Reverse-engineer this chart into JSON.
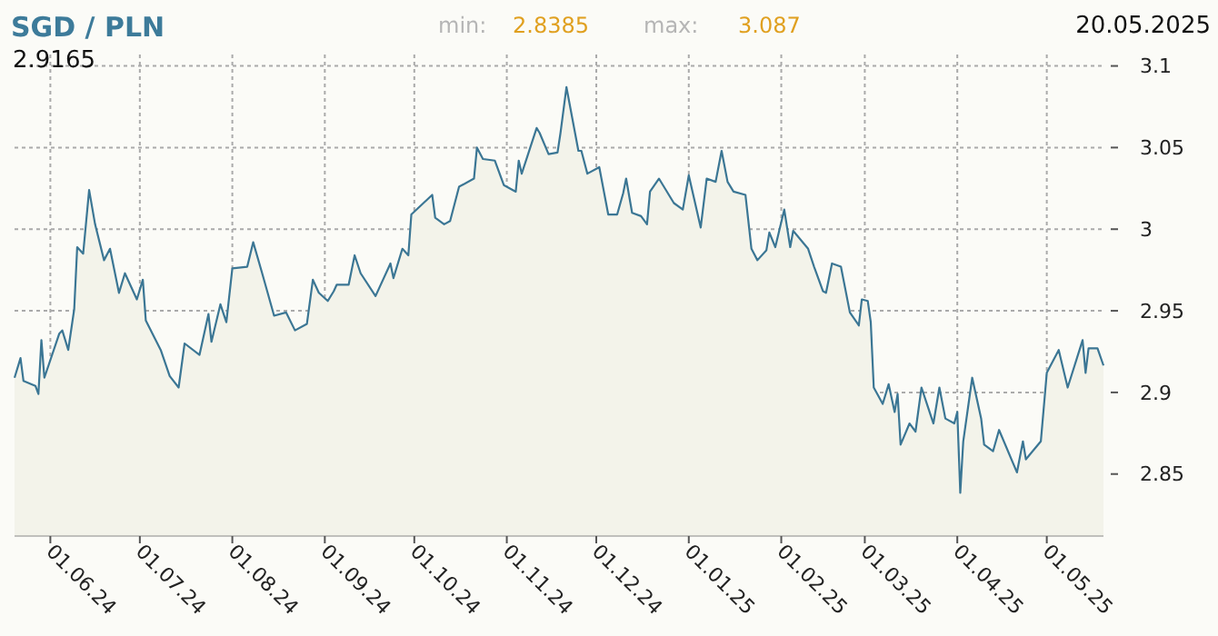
{
  "chart_data": {
    "type": "area",
    "title": "SGD / PLN",
    "annotations": [
      "min:",
      "2.8385",
      "max:",
      "3.087",
      "20.05.2025",
      "2.9165"
    ],
    "x": [
      "2024-05-20",
      "2024-05-22",
      "2024-05-23",
      "2024-05-27",
      "2024-05-28",
      "2024-05-29",
      "2024-05-30",
      "2024-06-04",
      "2024-06-05",
      "2024-06-07",
      "2024-06-09",
      "2024-06-10",
      "2024-06-12",
      "2024-06-14",
      "2024-06-16",
      "2024-06-19",
      "2024-06-21",
      "2024-06-24",
      "2024-06-26",
      "2024-06-30",
      "2024-07-02",
      "2024-07-03",
      "2024-07-08",
      "2024-07-11",
      "2024-07-14",
      "2024-07-16",
      "2024-07-21",
      "2024-07-24",
      "2024-07-25",
      "2024-07-28",
      "2024-07-30",
      "2024-08-01",
      "2024-08-06",
      "2024-08-08",
      "2024-08-11",
      "2024-08-15",
      "2024-08-19",
      "2024-08-22",
      "2024-08-26",
      "2024-08-28",
      "2024-08-30",
      "2024-09-02",
      "2024-09-04",
      "2024-09-05",
      "2024-09-09",
      "2024-09-11",
      "2024-09-13",
      "2024-09-18",
      "2024-09-23",
      "2024-09-24",
      "2024-09-27",
      "2024-09-29",
      "2024-09-30",
      "2024-10-07",
      "2024-10-08",
      "2024-10-11",
      "2024-10-13",
      "2024-10-16",
      "2024-10-21",
      "2024-10-22",
      "2024-10-24",
      "2024-10-28",
      "2024-10-31",
      "2024-11-04",
      "2024-11-05",
      "2024-11-06",
      "2024-11-11",
      "2024-11-12",
      "2024-11-15",
      "2024-11-18",
      "2024-11-19",
      "2024-11-21",
      "2024-11-25",
      "2024-11-26",
      "2024-11-28",
      "2024-12-02",
      "2024-12-05",
      "2024-12-08",
      "2024-12-10",
      "2024-12-11",
      "2024-12-13",
      "2024-12-16",
      "2024-12-18",
      "2024-12-19",
      "2024-12-22",
      "2024-12-27",
      "2024-12-30",
      "2025-01-01",
      "2025-01-05",
      "2025-01-07",
      "2025-01-10",
      "2025-01-12",
      "2025-01-14",
      "2025-01-16",
      "2025-01-20",
      "2025-01-22",
      "2025-01-24",
      "2025-01-27",
      "2025-01-28",
      "2025-01-30",
      "2025-02-02",
      "2025-02-04",
      "2025-02-05",
      "2025-02-10",
      "2025-02-12",
      "2025-02-15",
      "2025-02-16",
      "2025-02-18",
      "2025-02-21",
      "2025-02-24",
      "2025-02-27",
      "2025-02-28",
      "2025-03-02",
      "2025-03-03",
      "2025-03-04",
      "2025-03-07",
      "2025-03-09",
      "2025-03-11",
      "2025-03-12",
      "2025-03-13",
      "2025-03-16",
      "2025-03-18",
      "2025-03-20",
      "2025-03-24",
      "2025-03-26",
      "2025-03-28",
      "2025-03-31",
      "2025-04-01",
      "2025-04-02",
      "2025-04-03",
      "2025-04-06",
      "2025-04-09",
      "2025-04-10",
      "2025-04-13",
      "2025-04-15",
      "2025-04-21",
      "2025-04-23",
      "2025-04-24",
      "2025-04-29",
      "2025-05-01",
      "2025-05-05",
      "2025-05-08",
      "2025-05-13",
      "2025-05-14",
      "2025-05-15",
      "2025-05-18",
      "2025-05-20"
    ],
    "series": [
      {
        "color": "#3b7694",
        "values": [
          2.909,
          2.921,
          2.907,
          2.904,
          2.899,
          2.932,
          2.909,
          2.936,
          2.938,
          2.926,
          2.951,
          2.989,
          2.985,
          3.024,
          3.003,
          2.981,
          2.988,
          2.961,
          2.973,
          2.957,
          2.969,
          2.944,
          2.926,
          2.91,
          2.903,
          2.93,
          2.923,
          2.948,
          2.931,
          2.954,
          2.943,
          2.976,
          2.977,
          2.992,
          2.973,
          2.947,
          2.949,
          2.938,
          2.942,
          2.969,
          2.961,
          2.956,
          2.962,
          2.966,
          2.966,
          2.984,
          2.973,
          2.959,
          2.979,
          2.97,
          2.988,
          2.984,
          3.009,
          3.021,
          3.007,
          3.003,
          3.005,
          3.026,
          3.031,
          3.05,
          3.043,
          3.042,
          3.027,
          3.023,
          3.042,
          3.034,
          3.062,
          3.059,
          3.046,
          3.047,
          3.059,
          3.087,
          3.048,
          3.048,
          3.034,
          3.038,
          3.009,
          3.009,
          3.022,
          3.031,
          3.01,
          3.008,
          3.003,
          3.023,
          3.031,
          3.016,
          3.012,
          3.033,
          3.001,
          3.031,
          3.029,
          3.048,
          3.029,
          3.023,
          3.021,
          2.988,
          2.981,
          2.987,
          2.998,
          2.989,
          3.012,
          2.989,
          2.999,
          2.988,
          2.977,
          2.962,
          2.961,
          2.979,
          2.977,
          2.949,
          2.941,
          2.957,
          2.956,
          2.943,
          2.903,
          2.893,
          2.905,
          2.888,
          2.899,
          2.868,
          2.881,
          2.876,
          2.903,
          2.881,
          2.903,
          2.884,
          2.881,
          2.888,
          2.8385,
          2.87,
          2.909,
          2.884,
          2.868,
          2.864,
          2.877,
          2.851,
          2.87,
          2.859,
          2.87,
          2.912,
          2.926,
          2.903,
          2.932,
          2.912,
          2.927,
          2.927,
          2.9165
        ]
      }
    ],
    "xlim": [
      "2024-05-20",
      "2025-05-20"
    ],
    "xticks": [
      {
        "value": "2024-06-01",
        "label": "01.06.24"
      },
      {
        "value": "2024-07-01",
        "label": "01.07.24"
      },
      {
        "value": "2024-08-01",
        "label": "01.08.24"
      },
      {
        "value": "2024-09-01",
        "label": "01.09.24"
      },
      {
        "value": "2024-10-01",
        "label": "01.10.24"
      },
      {
        "value": "2024-11-01",
        "label": "01.11.24"
      },
      {
        "value": "2024-12-01",
        "label": "01.12.24"
      },
      {
        "value": "2025-01-01",
        "label": "01.01.25"
      },
      {
        "value": "2025-02-01",
        "label": "01.02.25"
      },
      {
        "value": "2025-03-01",
        "label": "01.03.25"
      },
      {
        "value": "2025-04-01",
        "label": "01.04.25"
      },
      {
        "value": "2025-05-01",
        "label": "01.05.25"
      }
    ],
    "ylim": [
      2.812,
      3.107
    ],
    "yticks": [
      2.85,
      2.9,
      2.95,
      3,
      3.05,
      3.1
    ],
    "grid": true
  }
}
